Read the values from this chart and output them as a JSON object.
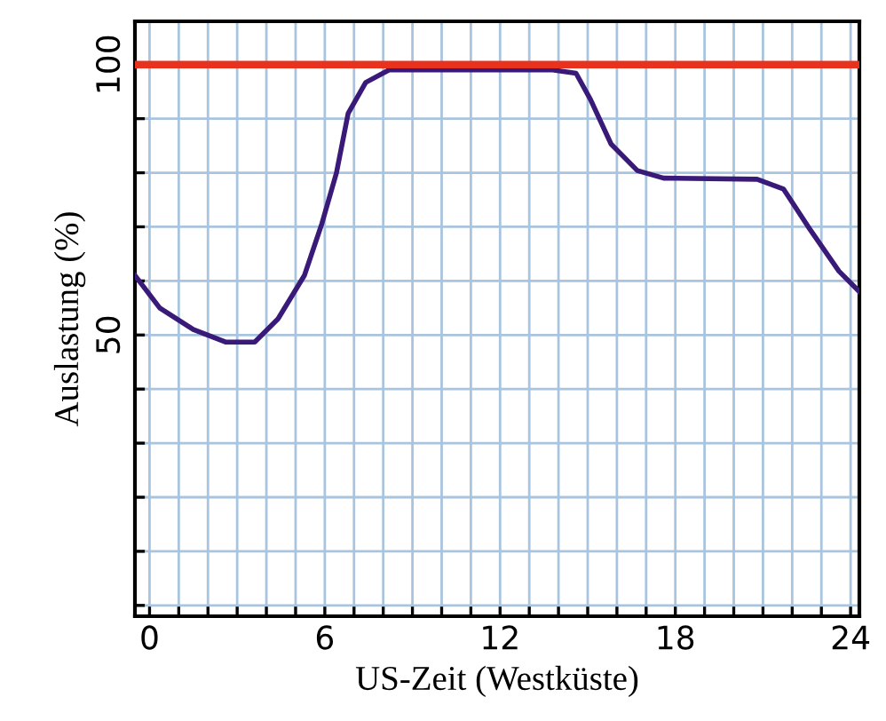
{
  "chart_data": {
    "type": "line",
    "xlabel": "US-Zeit (Westküste)",
    "ylabel": "Auslastung (%)",
    "x": [
      -0.5,
      0.35,
      1.5,
      2.6,
      3.6,
      4.4,
      5.3,
      5.9,
      6.4,
      6.8,
      7.4,
      8.2,
      13.8,
      14.6,
      15.1,
      15.8,
      16.7,
      17.6,
      20.8,
      21.7,
      22.6,
      23.6,
      24.3
    ],
    "series": [
      {
        "color": "#3a1a78",
        "values": [
          61,
          55,
          51,
          48.7,
          48.7,
          53,
          61,
          70.6,
          80,
          91,
          96.7,
          99,
          99,
          98.4,
          93.5,
          85.3,
          80.4,
          79,
          78.8,
          77,
          69.6,
          61.8,
          58
        ]
      }
    ],
    "ref_lines": [
      {
        "axis": "y",
        "value": 100,
        "label": null,
        "color": "#e8321e",
        "line_style": "solid"
      }
    ],
    "xlim": [
      -0.5,
      24.3
    ],
    "ylim": [
      -2,
      108
    ],
    "xticks": [
      0,
      {
        "value": 1,
        "label": null
      },
      {
        "value": 2,
        "label": null
      },
      {
        "value": 3,
        "label": null
      },
      {
        "value": 4,
        "label": null
      },
      {
        "value": 5,
        "label": null
      },
      6,
      {
        "value": 7,
        "label": null
      },
      {
        "value": 8,
        "label": null
      },
      {
        "value": 9,
        "label": null
      },
      {
        "value": 10,
        "label": null
      },
      {
        "value": 11,
        "label": null
      },
      12,
      {
        "value": 13,
        "label": null
      },
      {
        "value": 14,
        "label": null
      },
      {
        "value": 15,
        "label": null
      },
      {
        "value": 16,
        "label": null
      },
      {
        "value": 17,
        "label": null
      },
      18,
      {
        "value": 19,
        "label": null
      },
      {
        "value": 20,
        "label": null
      },
      {
        "value": 21,
        "label": null
      },
      {
        "value": 22,
        "label": null
      },
      {
        "value": 23,
        "label": null
      },
      24
    ],
    "yticks": [
      {
        "value": 0,
        "label": null
      },
      {
        "value": 10,
        "label": null
      },
      {
        "value": 20,
        "label": null
      },
      {
        "value": 30,
        "label": null
      },
      {
        "value": 40,
        "label": null
      },
      50,
      {
        "value": 60,
        "label": null
      },
      {
        "value": 70,
        "label": null
      },
      {
        "value": 80,
        "label": null
      },
      {
        "value": 90,
        "label": null
      },
      100
    ],
    "grid": true,
    "legend": false,
    "marker": "none",
    "line_style": "solid"
  }
}
